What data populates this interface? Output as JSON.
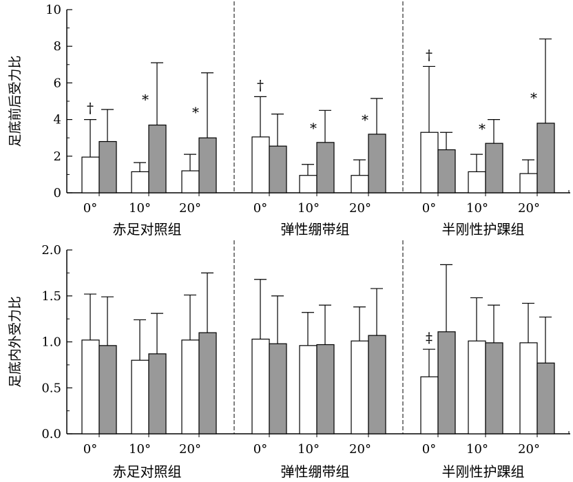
{
  "colors": {
    "white_bar": "#ffffff",
    "gray_bar": "#999999",
    "ink": "#000000"
  },
  "chart_data": [
    {
      "type": "bar",
      "ylabel": "足底前后受力比",
      "ylim": [
        0,
        10
      ],
      "yticks": [
        "0",
        "2",
        "4",
        "6",
        "8",
        "10"
      ],
      "groups": [
        {
          "name": "赤足对照组",
          "categories": [
            "0°",
            "10°",
            "20°"
          ],
          "bars": [
            {
              "white": 1.95,
              "white_err": 2.05,
              "gray": 2.8,
              "gray_err": 1.75,
              "sig_white": "†",
              "sig_gray": ""
            },
            {
              "white": 1.15,
              "white_err": 0.5,
              "gray": 3.7,
              "gray_err": 3.4,
              "sig_white": "",
              "sig_gray": "*"
            },
            {
              "white": 1.2,
              "white_err": 0.9,
              "gray": 3.0,
              "gray_err": 3.55,
              "sig_white": "",
              "sig_gray": "*"
            }
          ]
        },
        {
          "name": "弹性绷带组",
          "categories": [
            "0°",
            "10°",
            "20°"
          ],
          "bars": [
            {
              "white": 3.05,
              "white_err": 2.2,
              "gray": 2.55,
              "gray_err": 1.75,
              "sig_white": "†",
              "sig_gray": ""
            },
            {
              "white": 0.95,
              "white_err": 0.6,
              "gray": 2.75,
              "gray_err": 1.75,
              "sig_white": "",
              "sig_gray": "*"
            },
            {
              "white": 0.95,
              "white_err": 0.85,
              "gray": 3.2,
              "gray_err": 1.95,
              "sig_white": "",
              "sig_gray": "*"
            }
          ]
        },
        {
          "name": "半刚性护踝组",
          "categories": [
            "0°",
            "10°",
            "20°"
          ],
          "bars": [
            {
              "white": 3.3,
              "white_err": 3.6,
              "gray": 2.35,
              "gray_err": 0.95,
              "sig_white": "†",
              "sig_gray": ""
            },
            {
              "white": 1.15,
              "white_err": 0.95,
              "gray": 2.7,
              "gray_err": 1.3,
              "sig_white": "",
              "sig_gray": "*"
            },
            {
              "white": 1.05,
              "white_err": 0.75,
              "gray": 3.8,
              "gray_err": 4.6,
              "sig_white": "",
              "sig_gray": "*"
            }
          ]
        }
      ]
    },
    {
      "type": "bar",
      "ylabel": "足底内外受力比",
      "ylim": [
        0,
        2.0
      ],
      "yticks": [
        "0.0",
        "0.5",
        "1.0",
        "1.5",
        "2.0"
      ],
      "groups": [
        {
          "name": "赤足对照组",
          "categories": [
            "0°",
            "10°",
            "20°"
          ],
          "bars": [
            {
              "white": 1.02,
              "white_err": 0.5,
              "gray": 0.96,
              "gray_err": 0.53,
              "sig_white": "",
              "sig_gray": ""
            },
            {
              "white": 0.8,
              "white_err": 0.44,
              "gray": 0.87,
              "gray_err": 0.44,
              "sig_white": "",
              "sig_gray": ""
            },
            {
              "white": 1.02,
              "white_err": 0.49,
              "gray": 1.1,
              "gray_err": 0.65,
              "sig_white": "",
              "sig_gray": ""
            }
          ]
        },
        {
          "name": "弹性绷带组",
          "categories": [
            "0°",
            "10°",
            "20°"
          ],
          "bars": [
            {
              "white": 1.03,
              "white_err": 0.65,
              "gray": 0.98,
              "gray_err": 0.52,
              "sig_white": "",
              "sig_gray": ""
            },
            {
              "white": 0.96,
              "white_err": 0.36,
              "gray": 0.97,
              "gray_err": 0.43,
              "sig_white": "",
              "sig_gray": ""
            },
            {
              "white": 1.01,
              "white_err": 0.37,
              "gray": 1.07,
              "gray_err": 0.51,
              "sig_white": "",
              "sig_gray": ""
            }
          ]
        },
        {
          "name": "半刚性护踝组",
          "categories": [
            "0°",
            "10°",
            "20°"
          ],
          "bars": [
            {
              "white": 0.62,
              "white_err": 0.3,
              "gray": 1.11,
              "gray_err": 0.73,
              "sig_white": "‡",
              "sig_gray": ""
            },
            {
              "white": 1.01,
              "white_err": 0.47,
              "gray": 0.99,
              "gray_err": 0.41,
              "sig_white": "",
              "sig_gray": ""
            },
            {
              "white": 0.99,
              "white_err": 0.43,
              "gray": 0.77,
              "gray_err": 0.5,
              "sig_white": "",
              "sig_gray": ""
            }
          ]
        }
      ]
    }
  ]
}
